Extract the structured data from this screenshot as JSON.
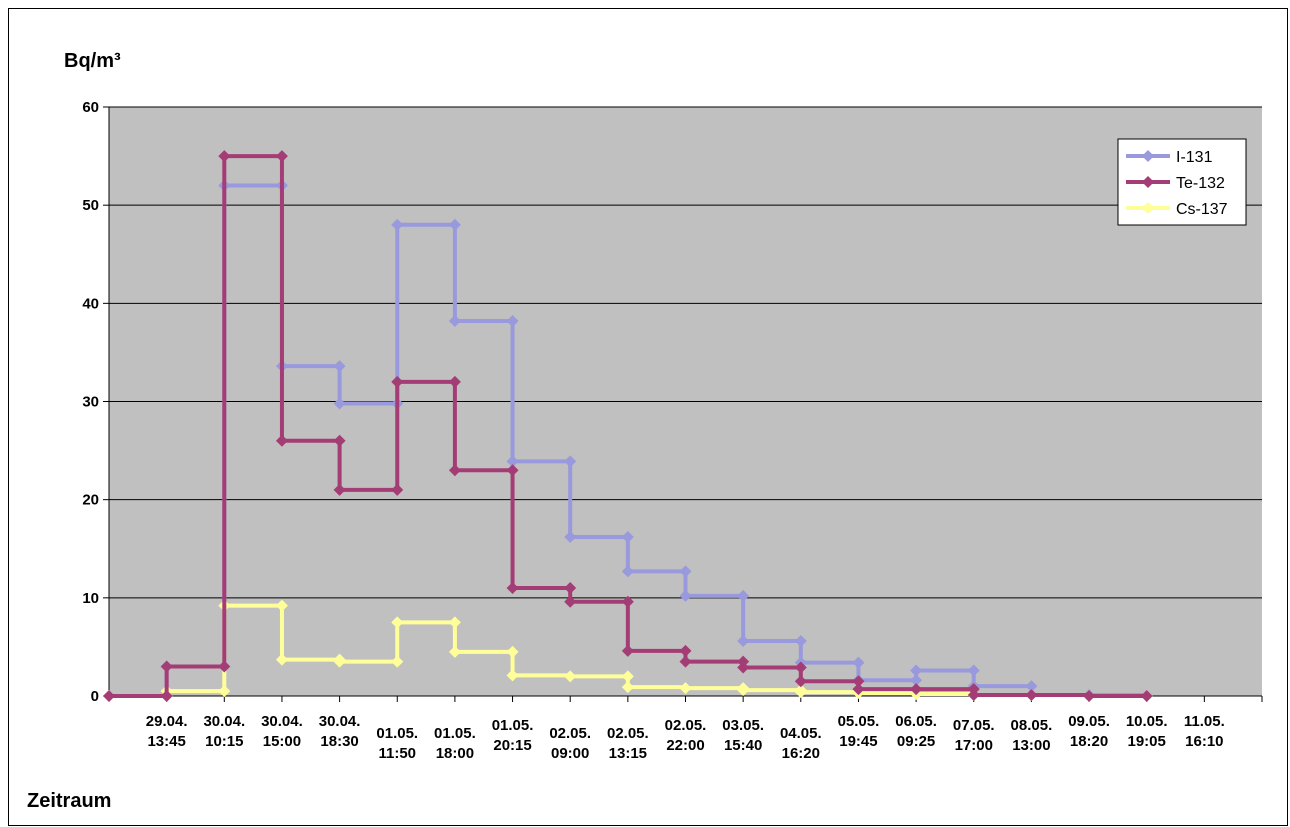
{
  "chart_data": {
    "type": "line",
    "title": "",
    "ylabel": "Bq/m³",
    "xlabel": "Zeitraum",
    "ylim": [
      0,
      60
    ],
    "yticks": [
      0,
      10,
      20,
      30,
      40,
      50,
      60
    ],
    "grid": true,
    "legend_position": "top-right",
    "plot_background": "#c0c0c0",
    "categories": [
      [
        "29.04.",
        "13:45"
      ],
      [
        "30.04.",
        "10:15"
      ],
      [
        "30.04.",
        "15:00"
      ],
      [
        "30.04.",
        "18:30"
      ],
      [
        "01.05.",
        "11:50"
      ],
      [
        "01.05.",
        "18:00"
      ],
      [
        "01.05.",
        "20:15"
      ],
      [
        "02.05.",
        "09:00"
      ],
      [
        "02.05.",
        "13:15"
      ],
      [
        "02.05.",
        "22:00"
      ],
      [
        "03.05.",
        "15:40"
      ],
      [
        "04.05.",
        "16:20"
      ],
      [
        "05.05.",
        "19:45"
      ],
      [
        "06.05.",
        "09:25"
      ],
      [
        "07.05.",
        "17:00"
      ],
      [
        "08.05.",
        "13:00"
      ],
      [
        "09.05.",
        "18:20"
      ],
      [
        "10.05.",
        "19:05"
      ],
      [
        "11.05.",
        "16:10"
      ]
    ],
    "series": [
      {
        "name": "I-131",
        "color": "#9999dd",
        "values": [
          0,
          3,
          52,
          33.6,
          29.8,
          48,
          38.2,
          23.9,
          16.2,
          12.7,
          10.2,
          5.6,
          3.4,
          1.6,
          2.6,
          1,
          0.1,
          0.1,
          0
        ]
      },
      {
        "name": "Te-132",
        "color": "#a43d75",
        "values": [
          0,
          3,
          55,
          26,
          21,
          32,
          23,
          11,
          9.6,
          4.6,
          3.5,
          2.9,
          1.5,
          0.7,
          0.7,
          0.1,
          0.1,
          0,
          0
        ]
      },
      {
        "name": "Cs-137",
        "color": "#ffff99",
        "values": [
          0,
          0.5,
          9.2,
          3.7,
          3.5,
          7.5,
          4.5,
          2.1,
          2,
          0.9,
          0.8,
          0.6,
          0.4,
          0.3,
          0.2,
          0.1,
          0.1,
          0,
          0
        ]
      }
    ]
  }
}
